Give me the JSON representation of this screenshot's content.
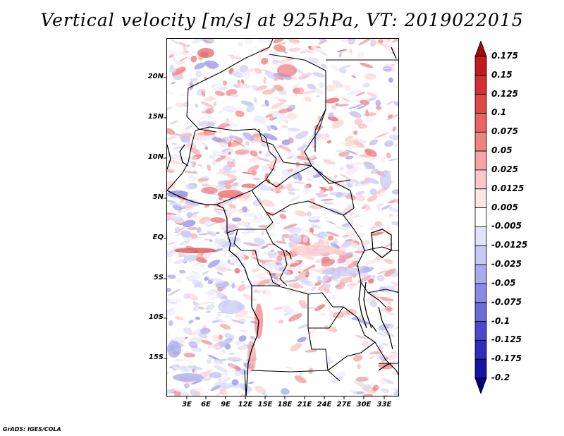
{
  "title": "Vertical velocity [m/s] at 925hPa, VT: 2019022015",
  "y_axis_labels": [
    "20N",
    "15N",
    "10N",
    "5N",
    "EQ",
    "5S",
    "10S",
    "15S"
  ],
  "x_axis_labels": [
    "3E",
    "6E",
    "9E",
    "12E",
    "15E",
    "18E",
    "21E",
    "24E",
    "27E",
    "30E",
    "33E"
  ],
  "colorbar": {
    "labels": [
      "0.175",
      "0.15",
      "0.125",
      "0.1",
      "0.075",
      "0.05",
      "0.025",
      "0.0125",
      "0.005",
      "-0.005",
      "-0.0125",
      "-0.025",
      "-0.05",
      "-0.075",
      "-0.1",
      "-0.125",
      "-0.175",
      "-0.2"
    ],
    "colors": [
      "#a00a0a",
      "#be1e1e",
      "#d03232",
      "#de4848",
      "#e86464",
      "#f08282",
      "#f6a4a4",
      "#fbc8c8",
      "#fde6e6",
      "#ffffff",
      "#e2e2fa",
      "#c8c8f4",
      "#aaaaee",
      "#8a8ae4",
      "#6a6ad8",
      "#4a4aca",
      "#2e2eb8",
      "#1616a0",
      "#000080"
    ]
  },
  "chart_data": {
    "type": "heatmap",
    "title": "Vertical velocity [m/s] at 925hPa, VT: 2019022015",
    "variable": "Vertical velocity",
    "units": "m/s",
    "level": "925hPa",
    "valid_time": "2019022015",
    "lon_range": [
      0,
      35
    ],
    "lat_range": [
      -20,
      25
    ],
    "lon_ticks": [
      3,
      6,
      9,
      12,
      15,
      18,
      21,
      24,
      27,
      30,
      33
    ],
    "lat_ticks": [
      20,
      15,
      10,
      5,
      0,
      -5,
      -10,
      -15
    ],
    "color_levels": [
      0.175,
      0.15,
      0.125,
      0.1,
      0.075,
      0.05,
      0.025,
      0.0125,
      0.005,
      -0.005,
      -0.0125,
      -0.025,
      -0.05,
      -0.075,
      -0.1,
      -0.125,
      -0.175,
      -0.2
    ]
  },
  "footer": "GrADS: IGES/COLA"
}
